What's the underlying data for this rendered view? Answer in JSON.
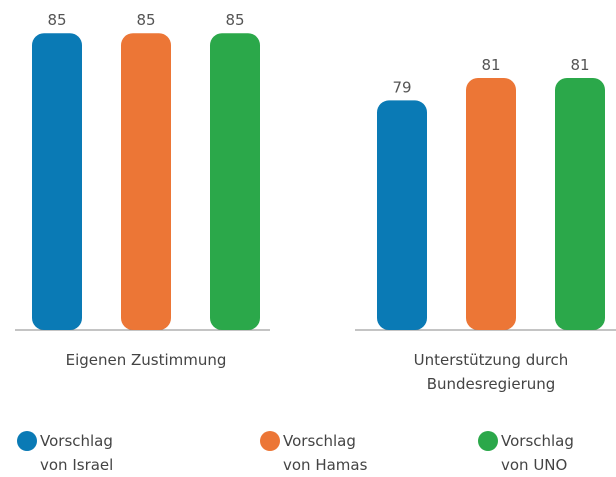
{
  "chart_data": {
    "type": "bar",
    "categories": [
      "Eigenen Zustimmung",
      "Unterstützung durch Bundesregierung"
    ],
    "series": [
      {
        "name": "Vorschlag von Israel",
        "color": "#0a7ab5",
        "values": [
          85,
          79
        ]
      },
      {
        "name": "Vorschlag von Hamas",
        "color": "#ec7636",
        "values": [
          85,
          81
        ]
      },
      {
        "name": "Vorschlag von UNO",
        "color": "#2ba84a",
        "values": [
          85,
          81
        ]
      }
    ],
    "ylim": [
      58.5,
      86
    ]
  }
}
